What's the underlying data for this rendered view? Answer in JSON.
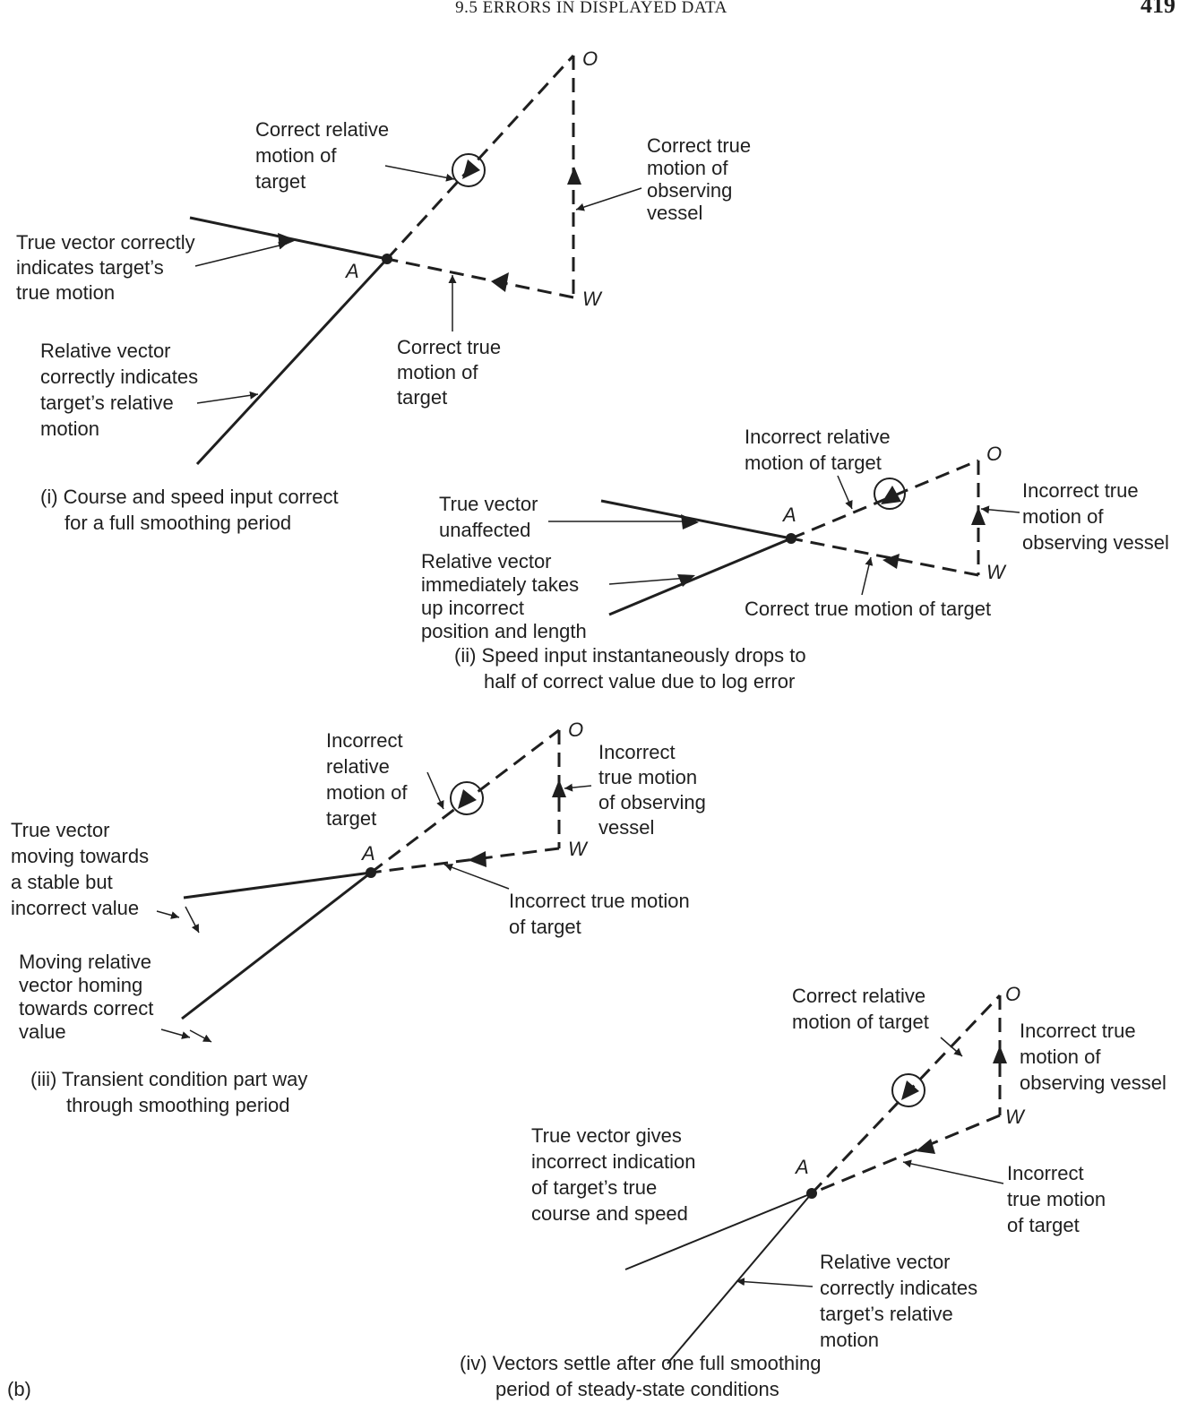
{
  "header": {
    "title": "9.5 ERRORS IN DISPLAYED DATA",
    "page_number": "419"
  },
  "figure_label": "(b)",
  "points": {
    "O": "O",
    "W": "W",
    "A": "A"
  },
  "panel1": {
    "caption": [
      "(i) Course and speed input correct",
      "for a full smoothing period"
    ],
    "labels": {
      "correct_relative": [
        "Correct relative",
        "motion of",
        "target"
      ],
      "correct_true_observer": [
        "Correct true",
        "motion of",
        "observing",
        "vessel"
      ],
      "true_vector": [
        "True vector correctly",
        "indicates target’s",
        "true motion"
      ],
      "relative_vector": [
        "Relative vector",
        "correctly indicates",
        "target’s relative",
        "motion"
      ],
      "correct_true_target": [
        "Correct true",
        "motion of",
        "target"
      ]
    }
  },
  "panel2": {
    "caption": [
      "(ii) Speed input instantaneously drops to",
      "half of correct value due to log error"
    ],
    "labels": {
      "incorrect_relative": [
        "Incorrect relative",
        "motion of target"
      ],
      "true_vector": [
        "True vector",
        "unaffected"
      ],
      "incorrect_true_observer": [
        "Incorrect true",
        "motion of",
        "observing vessel"
      ],
      "relative_vector": [
        "Relative vector",
        "immediately takes",
        "up incorrect",
        "position and length"
      ],
      "correct_true_target": [
        "Correct true motion of target"
      ]
    }
  },
  "panel3": {
    "caption": [
      "(iii) Transient condition part way",
      "through smoothing period"
    ],
    "labels": {
      "incorrect_relative": [
        "Incorrect",
        "relative",
        "motion of",
        "target"
      ],
      "incorrect_true_observer": [
        "Incorrect",
        "true motion",
        "of observing",
        "vessel"
      ],
      "true_vector": [
        "True vector",
        "moving towards",
        "a stable but",
        "incorrect value"
      ],
      "incorrect_true_target": [
        "Incorrect true motion",
        "of target"
      ],
      "relative_vector": [
        "Moving relative",
        "vector homing",
        "towards correct",
        "value"
      ]
    }
  },
  "panel4": {
    "caption": [
      "(iv) Vectors settle after one full smoothing",
      "period of steady-state conditions"
    ],
    "labels": {
      "correct_relative": [
        "Correct relative",
        "motion of target"
      ],
      "incorrect_true_observer": [
        "Incorrect true",
        "motion of",
        "observing vessel"
      ],
      "true_vector": [
        "True vector gives",
        "incorrect indication",
        "of target’s true",
        "course and speed"
      ],
      "incorrect_true_target": [
        "Incorrect",
        "true motion",
        "of target"
      ],
      "relative_vector": [
        "Relative vector",
        "correctly indicates",
        "target’s relative",
        "motion"
      ]
    }
  }
}
